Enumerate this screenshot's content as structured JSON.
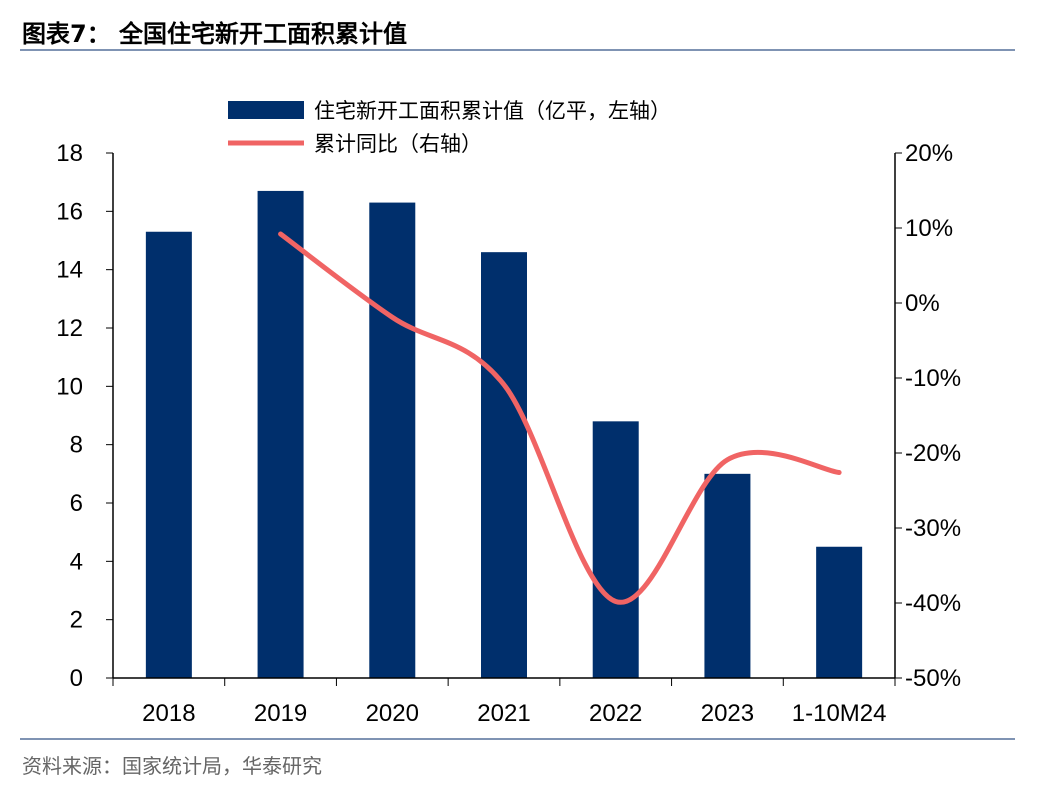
{
  "title": "图表7：  全国住宅新开工面积累计值",
  "source": "资料来源：国家统计局，华泰研究",
  "chart_data": {
    "type": "bar+line",
    "categories": [
      "2018",
      "2019",
      "2020",
      "2021",
      "2022",
      "2023",
      "1-10M24"
    ],
    "series": [
      {
        "name": "住宅新开工面积累计值（亿平，左轴）",
        "type": "bar",
        "axis": "left",
        "color": "#002F6C",
        "values": [
          15.3,
          16.7,
          16.3,
          14.6,
          8.8,
          7.0,
          4.5
        ]
      },
      {
        "name": "累计同比（右轴）",
        "type": "line",
        "axis": "right",
        "color": "#F06464",
        "values": [
          null,
          9.2,
          -1.9,
          -10.9,
          -39.8,
          -20.9,
          -22.6
        ]
      }
    ],
    "left_axis": {
      "ylim": [
        0,
        18
      ],
      "ticks": [
        "0",
        "2",
        "4",
        "6",
        "8",
        "10",
        "12",
        "14",
        "16",
        "18"
      ]
    },
    "right_axis": {
      "ylim": [
        -50,
        20
      ],
      "ticks": [
        "-50%",
        "-40%",
        "-30%",
        "-20%",
        "-10%",
        "0%",
        "10%",
        "20%"
      ]
    },
    "legend_position": "top",
    "grid": false
  }
}
